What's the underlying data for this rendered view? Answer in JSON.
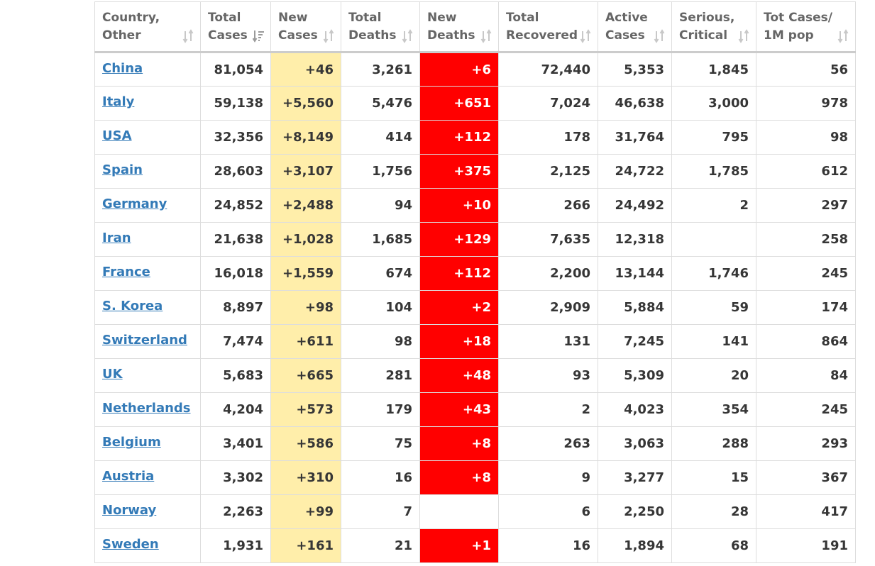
{
  "colors": {
    "new_cases_bg": "#ffeeaa",
    "new_deaths_bg": "#ff0000",
    "country_link": "#337ab7",
    "header_text": "#666666"
  },
  "headers": [
    {
      "line1": "Country,",
      "line2": "Other",
      "icon": "sort-icon"
    },
    {
      "line1": "Total",
      "line2": "Cases",
      "icon": "sort-desc-icon"
    },
    {
      "line1": "New",
      "line2": "Cases",
      "icon": "sort-icon"
    },
    {
      "line1": "Total",
      "line2": "Deaths",
      "icon": "sort-icon"
    },
    {
      "line1": "New",
      "line2": "Deaths",
      "icon": "sort-icon"
    },
    {
      "line1": "Total",
      "line2": "Recovered",
      "icon": "sort-icon"
    },
    {
      "line1": "Active",
      "line2": "Cases",
      "icon": "sort-icon"
    },
    {
      "line1": "Serious,",
      "line2": "Critical",
      "icon": "sort-icon"
    },
    {
      "line1": "Tot Cases/",
      "line2": "1M pop",
      "icon": "sort-icon"
    }
  ],
  "rows": [
    {
      "country": "China",
      "total_cases": "81,054",
      "new_cases": "+46",
      "total_deaths": "3,261",
      "new_deaths": "+6",
      "total_recovered": "72,440",
      "active_cases": "5,353",
      "serious_critical": "1,845",
      "tot_cases_1m": "56"
    },
    {
      "country": "Italy",
      "total_cases": "59,138",
      "new_cases": "+5,560",
      "total_deaths": "5,476",
      "new_deaths": "+651",
      "total_recovered": "7,024",
      "active_cases": "46,638",
      "serious_critical": "3,000",
      "tot_cases_1m": "978"
    },
    {
      "country": "USA",
      "total_cases": "32,356",
      "new_cases": "+8,149",
      "total_deaths": "414",
      "new_deaths": "+112",
      "total_recovered": "178",
      "active_cases": "31,764",
      "serious_critical": "795",
      "tot_cases_1m": "98"
    },
    {
      "country": "Spain",
      "total_cases": "28,603",
      "new_cases": "+3,107",
      "total_deaths": "1,756",
      "new_deaths": "+375",
      "total_recovered": "2,125",
      "active_cases": "24,722",
      "serious_critical": "1,785",
      "tot_cases_1m": "612"
    },
    {
      "country": "Germany",
      "total_cases": "24,852",
      "new_cases": "+2,488",
      "total_deaths": "94",
      "new_deaths": "+10",
      "total_recovered": "266",
      "active_cases": "24,492",
      "serious_critical": "2",
      "tot_cases_1m": "297"
    },
    {
      "country": "Iran",
      "total_cases": "21,638",
      "new_cases": "+1,028",
      "total_deaths": "1,685",
      "new_deaths": "+129",
      "total_recovered": "7,635",
      "active_cases": "12,318",
      "serious_critical": "",
      "tot_cases_1m": "258"
    },
    {
      "country": "France",
      "total_cases": "16,018",
      "new_cases": "+1,559",
      "total_deaths": "674",
      "new_deaths": "+112",
      "total_recovered": "2,200",
      "active_cases": "13,144",
      "serious_critical": "1,746",
      "tot_cases_1m": "245"
    },
    {
      "country": "S. Korea",
      "total_cases": "8,897",
      "new_cases": "+98",
      "total_deaths": "104",
      "new_deaths": "+2",
      "total_recovered": "2,909",
      "active_cases": "5,884",
      "serious_critical": "59",
      "tot_cases_1m": "174"
    },
    {
      "country": "Switzerland",
      "total_cases": "7,474",
      "new_cases": "+611",
      "total_deaths": "98",
      "new_deaths": "+18",
      "total_recovered": "131",
      "active_cases": "7,245",
      "serious_critical": "141",
      "tot_cases_1m": "864"
    },
    {
      "country": "UK",
      "total_cases": "5,683",
      "new_cases": "+665",
      "total_deaths": "281",
      "new_deaths": "+48",
      "total_recovered": "93",
      "active_cases": "5,309",
      "serious_critical": "20",
      "tot_cases_1m": "84"
    },
    {
      "country": "Netherlands",
      "total_cases": "4,204",
      "new_cases": "+573",
      "total_deaths": "179",
      "new_deaths": "+43",
      "total_recovered": "2",
      "active_cases": "4,023",
      "serious_critical": "354",
      "tot_cases_1m": "245"
    },
    {
      "country": "Belgium",
      "total_cases": "3,401",
      "new_cases": "+586",
      "total_deaths": "75",
      "new_deaths": "+8",
      "total_recovered": "263",
      "active_cases": "3,063",
      "serious_critical": "288",
      "tot_cases_1m": "293"
    },
    {
      "country": "Austria",
      "total_cases": "3,302",
      "new_cases": "+310",
      "total_deaths": "16",
      "new_deaths": "+8",
      "total_recovered": "9",
      "active_cases": "3,277",
      "serious_critical": "15",
      "tot_cases_1m": "367"
    },
    {
      "country": "Norway",
      "total_cases": "2,263",
      "new_cases": "+99",
      "total_deaths": "7",
      "new_deaths": "",
      "total_recovered": "6",
      "active_cases": "2,250",
      "serious_critical": "28",
      "tot_cases_1m": "417"
    },
    {
      "country": "Sweden",
      "total_cases": "1,931",
      "new_cases": "+161",
      "total_deaths": "21",
      "new_deaths": "+1",
      "total_recovered": "16",
      "active_cases": "1,894",
      "serious_critical": "68",
      "tot_cases_1m": "191"
    }
  ]
}
